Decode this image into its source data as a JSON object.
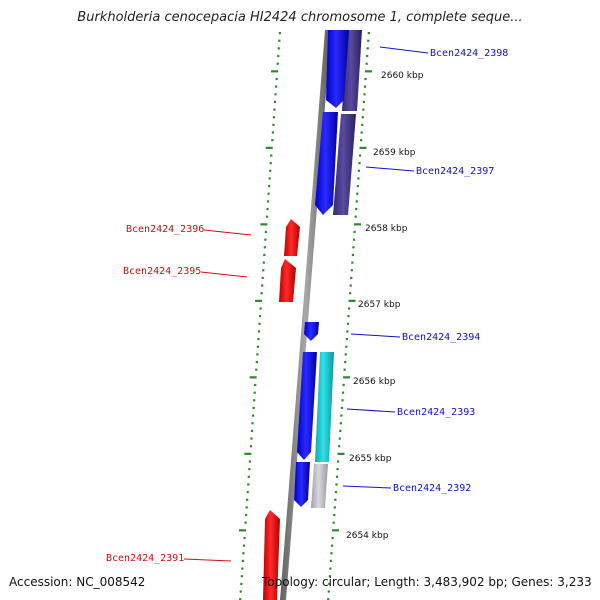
{
  "title": "Burkholderia cenocepacia HI2424 chromosome 1, complete seque...",
  "accession": "Accession: NC_008542",
  "topology": "Topology: circular; Length: 3,483,902 bp; Genes: 3,233",
  "kbp_ticks": [
    "2660 kbp",
    "2659 kbp",
    "2658 kbp",
    "2657 kbp",
    "2656 kbp",
    "2655 kbp",
    "2654 kbp"
  ],
  "genes": [
    {
      "name": "Bcen2424_2398",
      "strand": "forward",
      "color": "#1010cc"
    },
    {
      "name": "Bcen2424_2397",
      "strand": "forward",
      "color": "#1010cc"
    },
    {
      "name": "Bcen2424_2396",
      "strand": "reverse",
      "color": "#cc1010"
    },
    {
      "name": "Bcen2424_2395",
      "strand": "reverse",
      "color": "#cc1010"
    },
    {
      "name": "Bcen2424_2394",
      "strand": "forward",
      "color": "#1010cc"
    },
    {
      "name": "Bcen2424_2393",
      "strand": "forward",
      "color": "#1010cc"
    },
    {
      "name": "Bcen2424_2392",
      "strand": "forward",
      "color": "#1010cc"
    },
    {
      "name": "Bcen2424_2391",
      "strand": "reverse",
      "color": "#cc1010"
    }
  ],
  "colors": {
    "forward_gene": "#0a0aee",
    "reverse_gene": "#ee0a0a",
    "backbone": "#808080",
    "tick": "#2a8a2a",
    "cds_dark": "#4a3a8a",
    "cds_cyan": "#20c8d0",
    "cds_grey": "#b8b8c0"
  }
}
